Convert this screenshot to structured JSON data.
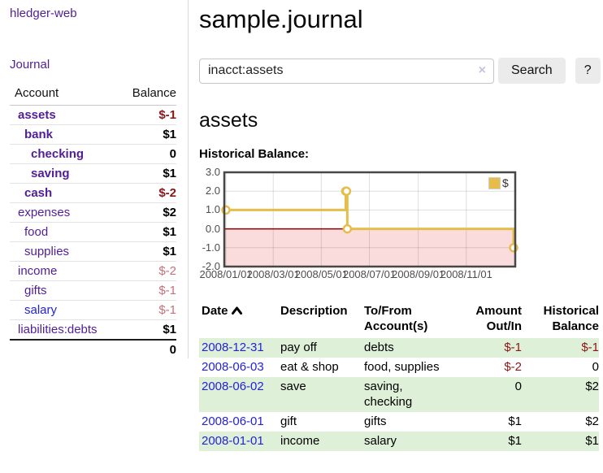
{
  "colors": {
    "link_purple": "#511e96",
    "link_blue": "#2323d6",
    "negative_strong": "#8c1515",
    "negative_faded": "#c5707a",
    "row_green": "#dff0d8",
    "chart_line_gold": "#e6bd4a",
    "chart_negative_fill": "#fbdcdc",
    "chart_zero_line": "#8b0000",
    "button_gray": "#ebebeb"
  },
  "sidebar": {
    "app_title": "hledger-web",
    "journal_link": "Journal",
    "accounts": {
      "header_account": "Account",
      "header_balance": "Balance",
      "rows": [
        {
          "name": "assets",
          "balance": "$-1"
        },
        {
          "name": "bank",
          "balance": "$1"
        },
        {
          "name": "checking",
          "balance": "0"
        },
        {
          "name": "saving",
          "balance": "$1"
        },
        {
          "name": "cash",
          "balance": "$-2"
        },
        {
          "name": "expenses",
          "balance": "$2"
        },
        {
          "name": "food",
          "balance": "$1"
        },
        {
          "name": "supplies",
          "balance": "$1"
        },
        {
          "name": "income",
          "balance": "$-2"
        },
        {
          "name": "gifts",
          "balance": "$-1"
        },
        {
          "name": "salary",
          "balance": "$-1"
        },
        {
          "name": "liabilities:debts",
          "balance": "$1"
        }
      ],
      "total": "0"
    }
  },
  "main": {
    "title": "sample.journal",
    "search": {
      "value": "inacct:assets",
      "clear_icon": "×",
      "button_label": "Search",
      "help_label": "?"
    },
    "account_heading": "assets",
    "chart_label": "Historical Balance:"
  },
  "chart_data": {
    "type": "line",
    "title": "Historical Balance",
    "step": true,
    "series": [
      {
        "name": "$",
        "color": "#e6bd4a",
        "points": [
          [
            "2008-01-01",
            1
          ],
          [
            "2008-06-01",
            2
          ],
          [
            "2008-06-02",
            2
          ],
          [
            "2008-06-03",
            0
          ],
          [
            "2008-12-31",
            -1
          ]
        ]
      }
    ],
    "x_range": [
      "2008-01-01",
      "2008-12-31"
    ],
    "ylim": [
      -2,
      3
    ],
    "yticks": [
      3,
      2,
      1,
      0,
      -1,
      -2
    ],
    "ytick_labels": [
      "3.0",
      "2.0",
      "1.0",
      "0.0",
      "-1.0",
      "-2.0"
    ],
    "xticks": [
      "2008/01/01",
      "2008/03/01",
      "2008/05/01",
      "2008/07/01",
      "2008/09/01",
      "2008/11/01"
    ],
    "legend": {
      "label": "$",
      "position": "top-right"
    },
    "grid": true,
    "negative_region_fill": "#fbdcdc",
    "zero_line_color": "#8b0000"
  },
  "register": {
    "headers": [
      {
        "line1": "Date",
        "sort": "ascending"
      },
      {
        "line1": "Description"
      },
      {
        "line1": "To/From",
        "line2": "Account(s)"
      },
      {
        "line1": "Amount",
        "line2": "Out/In"
      },
      {
        "line1": "Historical",
        "line2": "Balance"
      }
    ],
    "rows": [
      {
        "date": "2008-12-31",
        "description": "pay off",
        "accounts": "debts",
        "amount": "$-1",
        "balance": "$-1"
      },
      {
        "date": "2008-06-03",
        "description": "eat & shop",
        "accounts": "food, supplies",
        "amount": "$-2",
        "balance": "0"
      },
      {
        "date": "2008-06-02",
        "description": "save",
        "accounts": "saving, checking",
        "amount": "0",
        "balance": "$2"
      },
      {
        "date": "2008-06-01",
        "description": "gift",
        "accounts": "gifts",
        "amount": "$1",
        "balance": "$2"
      },
      {
        "date": "2008-01-01",
        "description": "income",
        "accounts": "salary",
        "amount": "$1",
        "balance": "$1"
      }
    ]
  }
}
